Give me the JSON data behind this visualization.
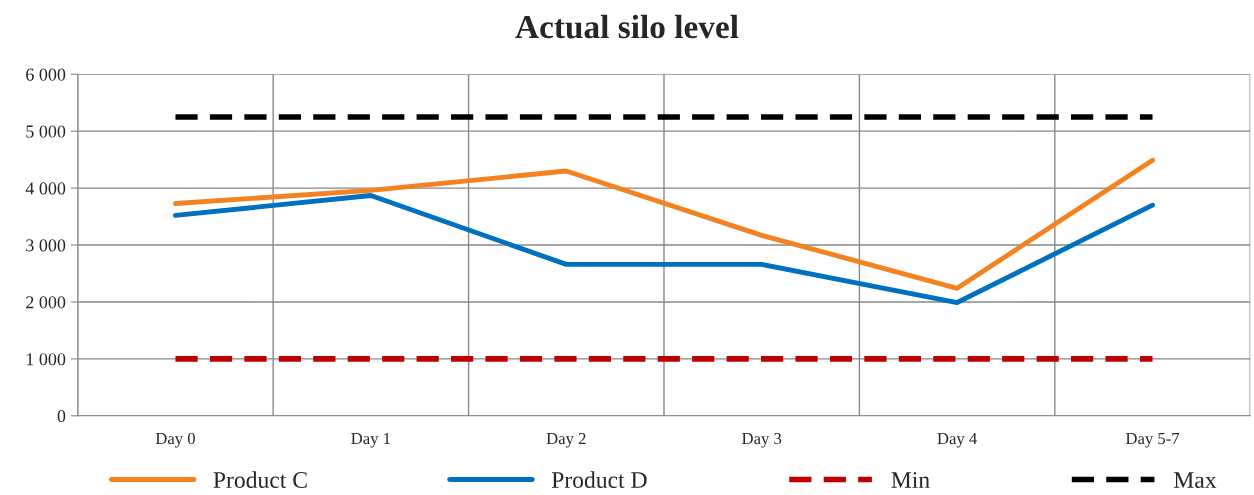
{
  "chart_data": {
    "type": "line",
    "title": "Actual silo level",
    "categories": [
      "Day 0",
      "Day 1",
      "Day 2",
      "Day 3",
      "Day 4",
      "Day 5-7"
    ],
    "series": [
      {
        "name": "Product C",
        "color": "#f58220",
        "values": [
          3730,
          3960,
          4300,
          3170,
          2240,
          4490
        ]
      },
      {
        "name": "Product D",
        "color": "#0070c0",
        "values": [
          3520,
          3870,
          2660,
          2660,
          1990,
          3700
        ]
      },
      {
        "name": "Min",
        "color": "#c00000",
        "line_style": "dashed",
        "values": [
          1000,
          1000,
          1000,
          1000,
          1000,
          1000
        ]
      },
      {
        "name": "Max",
        "color": "#000000",
        "line_style": "dashed",
        "values": [
          5250,
          5250,
          5250,
          5250,
          5250,
          5250
        ]
      }
    ],
    "ylim": [
      0,
      6000
    ],
    "yticks": [
      0,
      {
        "value": 1000,
        "label": "1 000"
      },
      {
        "value": 2000,
        "label": "2 000"
      },
      {
        "value": 3000,
        "label": "3 000"
      },
      {
        "value": 4000,
        "label": "4 000"
      },
      {
        "value": 5000,
        "label": "5 000"
      },
      {
        "value": 6000,
        "label": "6 000"
      }
    ],
    "grid": true,
    "legend": "bottom"
  }
}
